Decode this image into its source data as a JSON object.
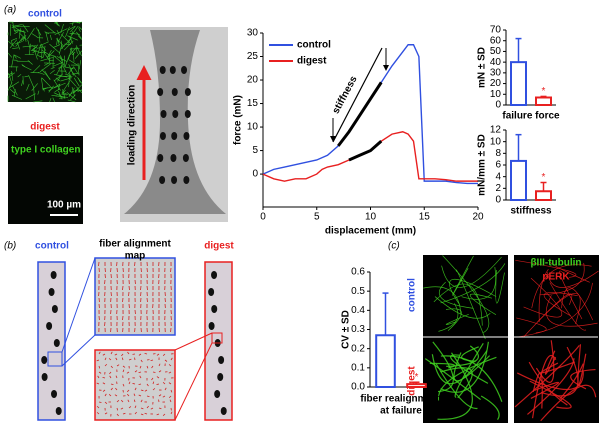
{
  "labels": {
    "panel_a": "(a)",
    "control_a": "control",
    "digest_a": "digest",
    "collagen": "type I collagen",
    "scale": "100 µm",
    "loading": "loading direction",
    "panel_b": "(b)",
    "control_b": "control",
    "map_title": [
      "fiber alignment",
      "map"
    ],
    "digest_b": "digest",
    "panel_c": "(c)",
    "tubulin": "βIII-tubulin",
    "perk": "pERK",
    "control_c": "control",
    "digest_c": "digest"
  },
  "chart_data": [
    {
      "type": "line",
      "x_label": "displacement (mm)",
      "y_label": "force (mN)",
      "annotation": "stiffness",
      "legend": "upper left",
      "x": [
        0,
        1,
        2,
        3,
        4,
        5,
        5.5,
        6,
        7,
        8,
        9,
        10,
        11,
        12,
        13,
        13.5,
        14,
        14.5,
        15,
        16,
        17,
        18,
        19,
        20
      ],
      "series": [
        {
          "name": "control",
          "color": "#3050e0",
          "values": [
            0,
            1,
            1.5,
            2,
            2.5,
            3,
            3.5,
            4,
            6,
            9,
            12.5,
            16,
            19.5,
            23,
            26,
            27.5,
            27.5,
            25,
            -1.5,
            -1.5,
            -1.5,
            -1.8,
            -2,
            -2
          ]
        },
        {
          "name": "digest",
          "color": "#e82020",
          "values": [
            0,
            -1,
            -1.5,
            -1,
            -1,
            0,
            1,
            1.5,
            2,
            3,
            4,
            5,
            7,
            8.5,
            9,
            8.5,
            7,
            -1,
            -1,
            -1,
            -1.2,
            -1.5,
            -1.5,
            -1.5
          ]
        }
      ],
      "xlim": [
        0,
        20
      ],
      "ylim": [
        -7,
        30
      ],
      "xticks": [
        0,
        5,
        10,
        15,
        20
      ],
      "yticks": [
        0,
        5,
        10,
        15,
        20,
        25,
        30
      ]
    },
    {
      "type": "bar",
      "x_label": "failure force",
      "y_label": "mN ± SD",
      "categories": [
        null,
        null
      ],
      "values": [
        40,
        7
      ],
      "errors": [
        22,
        1
      ],
      "colors": [
        "#3050e0",
        "#e82020"
      ],
      "annotation": "*",
      "ylim": [
        0,
        70
      ],
      "yticks": [
        0,
        10,
        20,
        30,
        40,
        50,
        60,
        70
      ]
    },
    {
      "type": "bar",
      "x_label": "stiffness",
      "y_label": "mN/mm ± SD",
      "categories": [
        null,
        null
      ],
      "values": [
        6.7,
        1.5
      ],
      "errors": [
        4.5,
        1.5
      ],
      "colors": [
        "#3050e0",
        "#e82020"
      ],
      "annotation": "*",
      "ylim": [
        0,
        12
      ],
      "yticks": [
        0,
        2,
        4,
        6,
        8,
        10,
        12
      ]
    },
    {
      "type": "bar",
      "x_label": [
        "fiber realignment",
        "at failure"
      ],
      "y_label": "CV ± SD",
      "categories": [
        null,
        null
      ],
      "values": [
        0.27,
        0.015
      ],
      "errors": [
        0.22,
        0.01
      ],
      "colors": [
        "#3050e0",
        "#e82020"
      ],
      "annotation": "*",
      "ylim": [
        0,
        0.6
      ],
      "yticks": [
        {
          "value": 0,
          "label": "0.0"
        },
        0.1,
        0.2,
        0.3,
        0.4,
        0.5,
        0.6
      ]
    }
  ]
}
